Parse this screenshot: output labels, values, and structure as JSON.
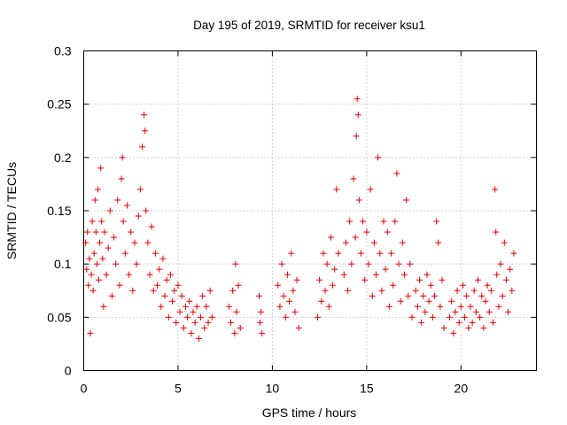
{
  "chart_data": {
    "type": "scatter",
    "title": "Day 195 of 2019, SRMTID for receiver ksu1",
    "xlabel": "GPS time / hours",
    "ylabel": "SRMTID / TECUs",
    "xlim": [
      0,
      24
    ],
    "ylim": [
      0,
      0.3
    ],
    "xticks": [
      0,
      5,
      10,
      15,
      20
    ],
    "yticks": [
      0,
      0.05,
      0.1,
      0.15,
      0.2,
      0.25,
      0.3
    ],
    "xtick_labels": [
      "0",
      "5",
      "10",
      "15",
      "20"
    ],
    "ytick_labels": [
      "0",
      "0.05",
      "0.1",
      "0.15",
      "0.2",
      "0.25",
      "0.3"
    ],
    "grid": true,
    "marker": "+",
    "color": "#e00000",
    "series": [
      {
        "name": "ksu1",
        "points": [
          [
            0.1,
            0.12
          ],
          [
            0.15,
            0.095
          ],
          [
            0.2,
            0.13
          ],
          [
            0.25,
            0.08
          ],
          [
            0.3,
            0.105
          ],
          [
            0.35,
            0.035
          ],
          [
            0.4,
            0.09
          ],
          [
            0.45,
            0.14
          ],
          [
            0.5,
            0.075
          ],
          [
            0.55,
            0.11
          ],
          [
            0.6,
            0.16
          ],
          [
            0.65,
            0.13
          ],
          [
            0.7,
            0.1
          ],
          [
            0.75,
            0.17
          ],
          [
            0.8,
            0.085
          ],
          [
            0.85,
            0.12
          ],
          [
            0.9,
            0.19
          ],
          [
            0.95,
            0.14
          ],
          [
            1.0,
            0.105
          ],
          [
            1.05,
            0.06
          ],
          [
            1.1,
            0.13
          ],
          [
            1.2,
            0.09
          ],
          [
            1.3,
            0.115
          ],
          [
            1.4,
            0.15
          ],
          [
            1.5,
            0.07
          ],
          [
            1.6,
            0.125
          ],
          [
            1.7,
            0.1
          ],
          [
            1.8,
            0.16
          ],
          [
            1.9,
            0.08
          ],
          [
            2.0,
            0.18
          ],
          [
            2.05,
            0.2
          ],
          [
            2.1,
            0.14
          ],
          [
            2.2,
            0.11
          ],
          [
            2.3,
            0.155
          ],
          [
            2.4,
            0.09
          ],
          [
            2.5,
            0.13
          ],
          [
            2.6,
            0.075
          ],
          [
            2.7,
            0.12
          ],
          [
            2.8,
            0.1
          ],
          [
            2.9,
            0.145
          ],
          [
            3.0,
            0.17
          ],
          [
            3.1,
            0.21
          ],
          [
            3.2,
            0.24
          ],
          [
            3.25,
            0.225
          ],
          [
            3.3,
            0.15
          ],
          [
            3.4,
            0.12
          ],
          [
            3.5,
            0.09
          ],
          [
            3.6,
            0.135
          ],
          [
            3.7,
            0.075
          ],
          [
            3.8,
            0.11
          ],
          [
            3.9,
            0.08
          ],
          [
            4.0,
            0.095
          ],
          [
            4.1,
            0.06
          ],
          [
            4.2,
            0.105
          ],
          [
            4.3,
            0.07
          ],
          [
            4.4,
            0.085
          ],
          [
            4.5,
            0.05
          ],
          [
            4.6,
            0.09
          ],
          [
            4.7,
            0.065
          ],
          [
            4.8,
            0.075
          ],
          [
            4.9,
            0.045
          ],
          [
            5.0,
            0.08
          ],
          [
            5.1,
            0.055
          ],
          [
            5.2,
            0.07
          ],
          [
            5.3,
            0.04
          ],
          [
            5.4,
            0.06
          ],
          [
            5.5,
            0.05
          ],
          [
            5.6,
            0.065
          ],
          [
            5.7,
            0.035
          ],
          [
            5.8,
            0.055
          ],
          [
            5.9,
            0.045
          ],
          [
            6.0,
            0.06
          ],
          [
            6.1,
            0.03
          ],
          [
            6.2,
            0.05
          ],
          [
            6.3,
            0.07
          ],
          [
            6.4,
            0.04
          ],
          [
            6.5,
            0.06
          ],
          [
            6.6,
            0.045
          ],
          [
            6.7,
            0.075
          ],
          [
            6.8,
            0.05
          ],
          [
            7.7,
            0.06
          ],
          [
            7.8,
            0.045
          ],
          [
            7.9,
            0.075
          ],
          [
            8.0,
            0.035
          ],
          [
            8.05,
            0.1
          ],
          [
            8.1,
            0.055
          ],
          [
            8.2,
            0.08
          ],
          [
            8.3,
            0.04
          ],
          [
            9.3,
            0.07
          ],
          [
            9.35,
            0.045
          ],
          [
            9.4,
            0.055
          ],
          [
            9.45,
            0.035
          ],
          [
            10.3,
            0.08
          ],
          [
            10.4,
            0.06
          ],
          [
            10.5,
            0.1
          ],
          [
            10.6,
            0.07
          ],
          [
            10.7,
            0.05
          ],
          [
            10.8,
            0.09
          ],
          [
            10.9,
            0.065
          ],
          [
            11.0,
            0.11
          ],
          [
            11.1,
            0.075
          ],
          [
            11.2,
            0.055
          ],
          [
            11.3,
            0.085
          ],
          [
            11.4,
            0.04
          ],
          [
            12.4,
            0.05
          ],
          [
            12.5,
            0.085
          ],
          [
            12.6,
            0.065
          ],
          [
            12.7,
            0.11
          ],
          [
            12.8,
            0.075
          ],
          [
            12.9,
            0.1
          ],
          [
            13.0,
            0.06
          ],
          [
            13.1,
            0.125
          ],
          [
            13.2,
            0.08
          ],
          [
            13.3,
            0.095
          ],
          [
            13.4,
            0.17
          ],
          [
            13.5,
            0.11
          ],
          [
            13.8,
            0.09
          ],
          [
            13.9,
            0.12
          ],
          [
            14.0,
            0.075
          ],
          [
            14.1,
            0.14
          ],
          [
            14.2,
            0.1
          ],
          [
            14.3,
            0.18
          ],
          [
            14.4,
            0.125
          ],
          [
            14.45,
            0.22
          ],
          [
            14.5,
            0.255
          ],
          [
            14.55,
            0.24
          ],
          [
            14.6,
            0.16
          ],
          [
            14.7,
            0.11
          ],
          [
            14.8,
            0.14
          ],
          [
            14.9,
            0.085
          ],
          [
            15.0,
            0.13
          ],
          [
            15.1,
            0.1
          ],
          [
            15.2,
            0.17
          ],
          [
            15.3,
            0.07
          ],
          [
            15.4,
            0.12
          ],
          [
            15.5,
            0.09
          ],
          [
            15.6,
            0.2
          ],
          [
            15.7,
            0.11
          ],
          [
            15.8,
            0.075
          ],
          [
            15.9,
            0.14
          ],
          [
            16.0,
            0.095
          ],
          [
            16.1,
            0.13
          ],
          [
            16.2,
            0.06
          ],
          [
            16.3,
            0.11
          ],
          [
            16.4,
            0.08
          ],
          [
            16.5,
            0.14
          ],
          [
            16.6,
            0.185
          ],
          [
            16.7,
            0.1
          ],
          [
            16.8,
            0.065
          ],
          [
            16.9,
            0.12
          ],
          [
            17.0,
            0.09
          ],
          [
            17.1,
            0.16
          ],
          [
            17.2,
            0.07
          ],
          [
            17.3,
            0.1
          ],
          [
            17.4,
            0.05
          ],
          [
            17.6,
            0.075
          ],
          [
            17.7,
            0.06
          ],
          [
            17.8,
            0.085
          ],
          [
            17.9,
            0.045
          ],
          [
            18.0,
            0.07
          ],
          [
            18.1,
            0.055
          ],
          [
            18.2,
            0.09
          ],
          [
            18.3,
            0.065
          ],
          [
            18.4,
            0.08
          ],
          [
            18.5,
            0.05
          ],
          [
            18.6,
            0.07
          ],
          [
            18.7,
            0.14
          ],
          [
            18.8,
            0.12
          ],
          [
            18.9,
            0.06
          ],
          [
            19.0,
            0.085
          ],
          [
            19.1,
            0.04
          ],
          [
            19.4,
            0.05
          ],
          [
            19.5,
            0.065
          ],
          [
            19.6,
            0.035
          ],
          [
            19.7,
            0.055
          ],
          [
            19.8,
            0.075
          ],
          [
            19.9,
            0.045
          ],
          [
            20.0,
            0.06
          ],
          [
            20.1,
            0.08
          ],
          [
            20.2,
            0.05
          ],
          [
            20.3,
            0.07
          ],
          [
            20.4,
            0.04
          ],
          [
            20.5,
            0.06
          ],
          [
            20.6,
            0.045
          ],
          [
            20.7,
            0.075
          ],
          [
            20.8,
            0.055
          ],
          [
            20.9,
            0.085
          ],
          [
            21.0,
            0.05
          ],
          [
            21.1,
            0.07
          ],
          [
            21.2,
            0.04
          ],
          [
            21.3,
            0.065
          ],
          [
            21.4,
            0.08
          ],
          [
            21.5,
            0.055
          ],
          [
            21.6,
            0.075
          ],
          [
            21.7,
            0.045
          ],
          [
            21.8,
            0.17
          ],
          [
            21.85,
            0.13
          ],
          [
            21.9,
            0.09
          ],
          [
            22.0,
            0.06
          ],
          [
            22.1,
            0.1
          ],
          [
            22.2,
            0.07
          ],
          [
            22.3,
            0.12
          ],
          [
            22.4,
            0.085
          ],
          [
            22.5,
            0.055
          ],
          [
            22.6,
            0.095
          ],
          [
            22.7,
            0.075
          ],
          [
            22.8,
            0.11
          ]
        ]
      }
    ]
  }
}
